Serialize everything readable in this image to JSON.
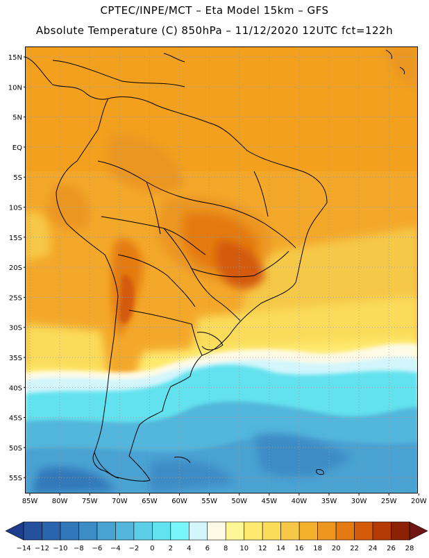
{
  "header": {
    "line1": "CPTEC/INPE/MCT –  Eta Model 15km – GFS",
    "line2": "Absolute Temperature (C) 850hPa – 11/12/2020 12UTC fct=122h"
  },
  "axes": {
    "lat_labels": [
      "15N",
      "10N",
      "5N",
      "EQ",
      "5S",
      "10S",
      "15S",
      "20S",
      "25S",
      "30S",
      "35S",
      "40S",
      "45S",
      "50S",
      "55S"
    ],
    "lon_labels": [
      "85W",
      "80W",
      "75W",
      "70W",
      "65W",
      "60W",
      "55W",
      "50W",
      "45W",
      "40W",
      "35W",
      "30W",
      "25W",
      "20W"
    ]
  },
  "colorbar": {
    "labels": [
      "-14",
      "-12",
      "-10",
      "-8",
      "-6",
      "-4",
      "-2",
      "0",
      "2",
      "4",
      "6",
      "8",
      "10",
      "12",
      "14",
      "16",
      "18",
      "20",
      "22",
      "24",
      "26",
      "28"
    ],
    "colors": [
      "#1e3c8c",
      "#25509e",
      "#2a64ae",
      "#3078ba",
      "#3c8cc6",
      "#48a2d2",
      "#52b6dc",
      "#5ccde6",
      "#62e2ee",
      "#78f6f8",
      "#d2f6fc",
      "#fffae6",
      "#fff696",
      "#ffea6e",
      "#fadc5a",
      "#f6c846",
      "#f4b22c",
      "#ec9620",
      "#e47a10",
      "#d45a0a",
      "#b43a06",
      "#8c2204",
      "#701414"
    ]
  },
  "map_style": {
    "field_base": "#f4a82a",
    "coast_color": "#000000",
    "grid_color": "#9a9a9a"
  }
}
